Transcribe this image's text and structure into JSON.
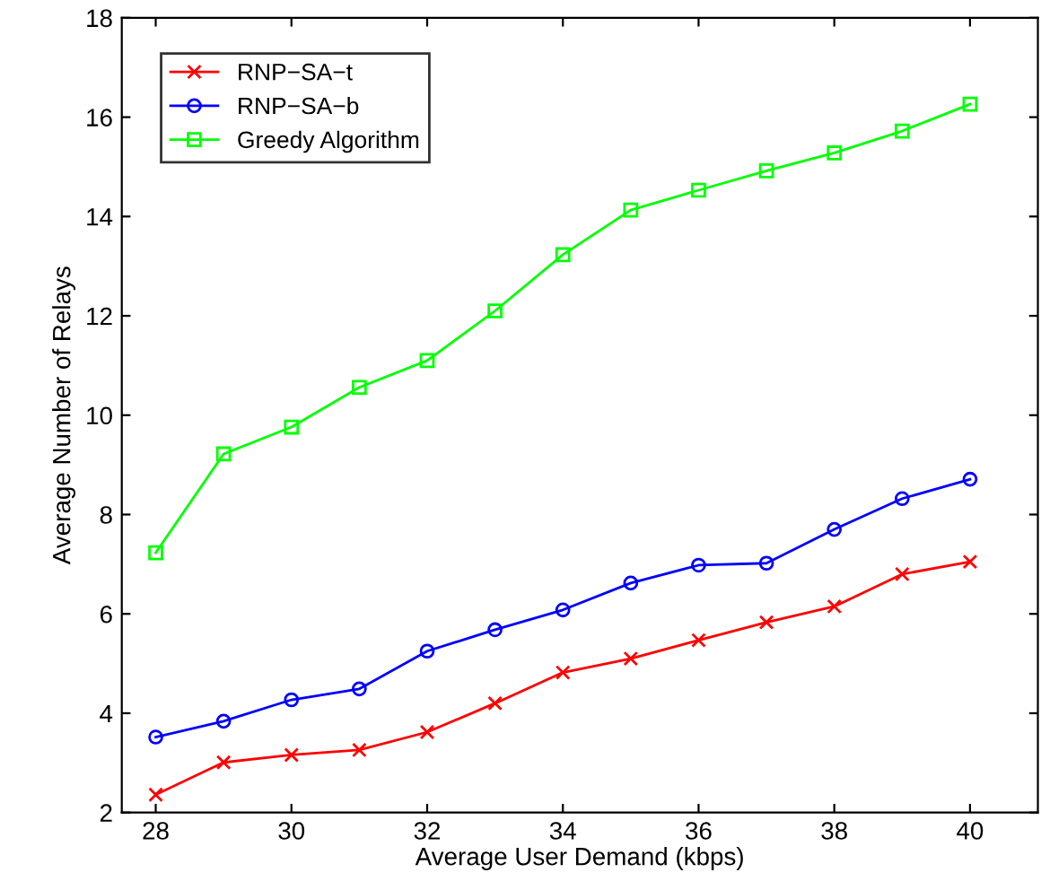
{
  "chart_data": {
    "type": "line",
    "xlabel": "Average User Demand (kbps)",
    "ylabel": "Average Number of Relays",
    "x": [
      28,
      29,
      30,
      31,
      32,
      33,
      34,
      35,
      36,
      37,
      38,
      39,
      40
    ],
    "series": [
      {
        "name": "RNP−SA−t",
        "color": "#ff0000",
        "marker": "cross",
        "values": [
          2.36,
          3.01,
          3.16,
          3.26,
          3.62,
          4.2,
          4.82,
          5.1,
          5.47,
          5.83,
          6.15,
          6.8,
          7.05
        ]
      },
      {
        "name": "RNP−SA−b",
        "color": "#0000ff",
        "marker": "circle",
        "values": [
          3.52,
          3.84,
          4.27,
          4.49,
          5.25,
          5.68,
          6.08,
          6.62,
          6.98,
          7.02,
          7.7,
          8.32,
          8.71
        ]
      },
      {
        "name": "Greedy Algorithm",
        "color": "#00ff00",
        "marker": "square",
        "values": [
          7.23,
          9.22,
          9.76,
          10.56,
          11.1,
          12.1,
          13.23,
          14.13,
          14.53,
          14.92,
          15.28,
          15.72,
          16.26
        ]
      }
    ],
    "xlim": [
      27.5,
      41
    ],
    "xticks": [
      28,
      30,
      32,
      34,
      36,
      38,
      40
    ],
    "ylim": [
      2,
      18
    ],
    "yticks": [
      2,
      4,
      6,
      8,
      10,
      12,
      14,
      16,
      18
    ],
    "grid": false,
    "legend": "top left",
    "line_style": "solid"
  }
}
